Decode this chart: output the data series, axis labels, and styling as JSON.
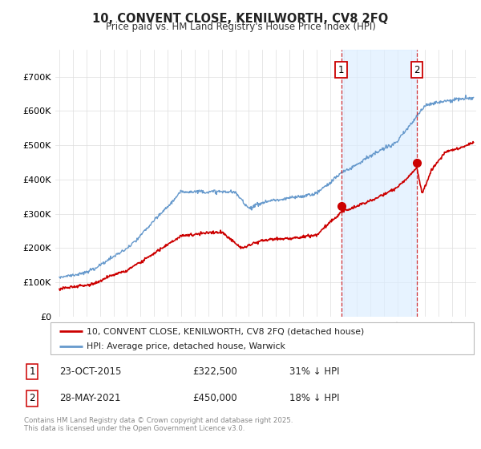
{
  "title": "10, CONVENT CLOSE, KENILWORTH, CV8 2FQ",
  "subtitle": "Price paid vs. HM Land Registry's House Price Index (HPI)",
  "legend_line1": "10, CONVENT CLOSE, KENILWORTH, CV8 2FQ (detached house)",
  "legend_line2": "HPI: Average price, detached house, Warwick",
  "transaction1_label": "1",
  "transaction1_date": "23-OCT-2015",
  "transaction1_price": "£322,500",
  "transaction1_hpi": "31% ↓ HPI",
  "transaction1_year": 2015.82,
  "transaction1_red_val": 322500,
  "transaction2_label": "2",
  "transaction2_date": "28-MAY-2021",
  "transaction2_price": "£450,000",
  "transaction2_hpi": "18% ↓ HPI",
  "transaction2_year": 2021.41,
  "transaction2_red_val": 450000,
  "footer": "Contains HM Land Registry data © Crown copyright and database right 2025.\nThis data is licensed under the Open Government Licence v3.0.",
  "red_color": "#cc0000",
  "blue_color": "#6699cc",
  "blue_fill_color": "#ddeeff",
  "background_color": "#ffffff",
  "ylim_min": 0,
  "ylim_max": 780000,
  "xlim_min": 1994.7,
  "xlim_max": 2025.8
}
